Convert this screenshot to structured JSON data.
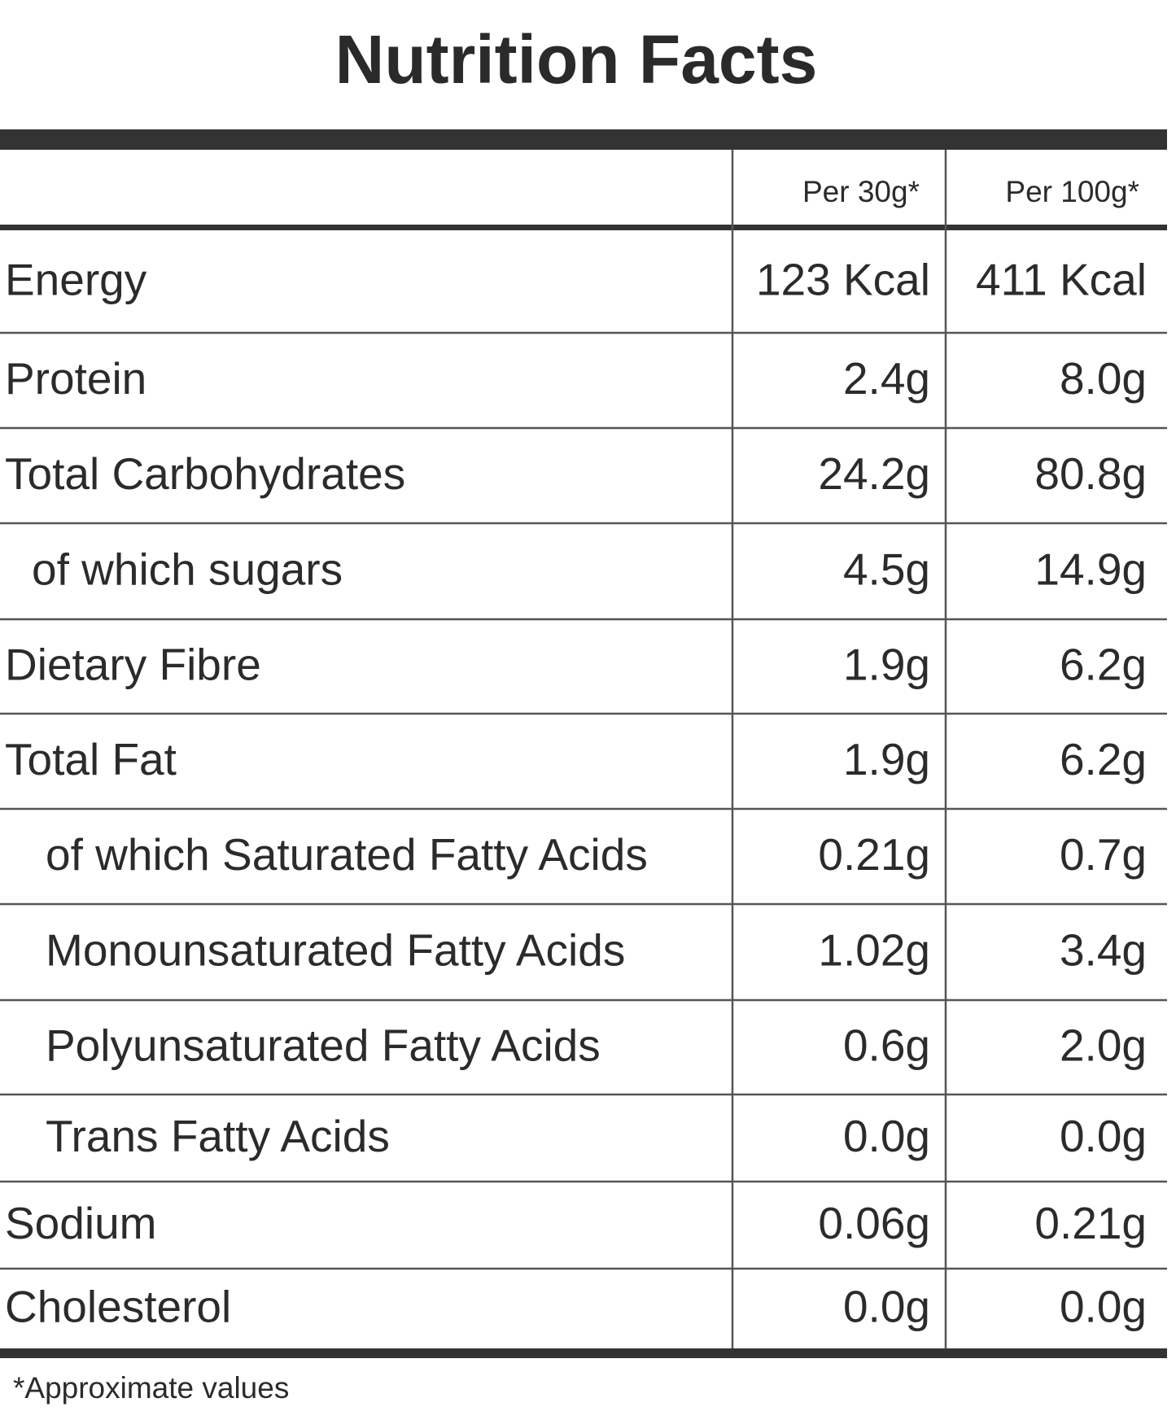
{
  "title": "Nutrition Facts",
  "table": {
    "columns": [
      "Per 30g*",
      "Per 100g*"
    ],
    "rows": [
      [
        "Energy",
        "123 Kcal",
        "411 Kcal"
      ],
      [
        "Protein",
        "2.4g",
        "8.0g"
      ],
      [
        "Total Carbohydrates",
        "24.2g",
        "80.8g"
      ],
      [
        "of which sugars",
        "4.5g",
        "14.9g"
      ],
      [
        "Dietary Fibre",
        "1.9g",
        "6.2g"
      ],
      [
        "Total Fat",
        "1.9g",
        "6.2g"
      ],
      [
        "of which Saturated Fatty Acids",
        "0.21g",
        "0.7g"
      ],
      [
        "Monounsaturated Fatty Acids",
        "1.02g",
        "3.4g"
      ],
      [
        "Polyunsaturated Fatty Acids",
        "0.6g",
        "2.0g"
      ],
      [
        "Trans Fatty Acids",
        "0.0g",
        "0.0g"
      ],
      [
        "Sodium",
        "0.06g",
        "0.21g"
      ],
      [
        "Cholesterol",
        "0.0g",
        "0.0g"
      ]
    ]
  },
  "footnote": "*Approximate values"
}
